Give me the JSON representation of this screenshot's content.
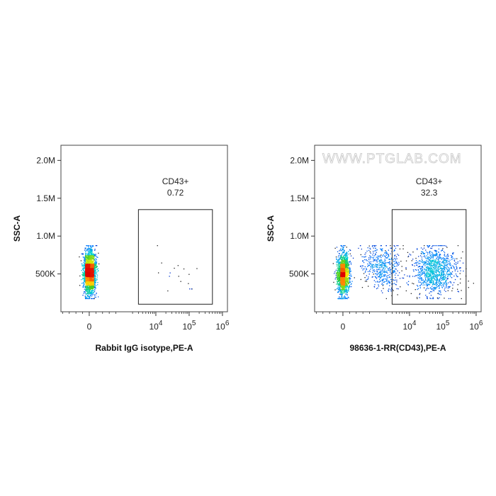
{
  "watermark": "WWW.PTGLAB.COM",
  "chart_data": [
    {
      "type": "scatter",
      "subtype": "flow-cytometry-density-dot-plot",
      "xlabel": "Rabbit IgG isotype,PE-A",
      "ylabel": "SSC-A",
      "x_scale": "biexponential",
      "x_ticks": [
        {
          "value": 0,
          "base": "0",
          "exp": ""
        },
        {
          "value": 10000,
          "base": "10",
          "exp": "4"
        },
        {
          "value": 100000,
          "base": "10",
          "exp": "5"
        },
        {
          "value": 1000000,
          "base": "10",
          "exp": "6"
        }
      ],
      "y_ticks": [
        {
          "value": 500000,
          "label": "500K"
        },
        {
          "value": 1000000,
          "label": "1.0M"
        },
        {
          "value": 1500000,
          "label": "1.5M"
        },
        {
          "value": 2000000,
          "label": "2.0M"
        }
      ],
      "ylim": [
        0,
        2200000
      ],
      "gate": {
        "name": "CD43+",
        "percent": "0.72",
        "x_range": [
          3000,
          500000
        ],
        "y_range": [
          100000,
          1350000
        ]
      },
      "populations": [
        {
          "x_center": 0,
          "y_center": 530000,
          "share_percent": 99.3
        },
        {
          "x_center": 30000,
          "y_center": 450000,
          "share_percent": 0.7
        }
      ],
      "grid": false,
      "legend": "none"
    },
    {
      "type": "scatter",
      "subtype": "flow-cytometry-density-dot-plot",
      "xlabel": "98636-1-RR(CD43),PE-A",
      "ylabel": "SSC-A",
      "x_scale": "biexponential",
      "x_ticks": [
        {
          "value": 0,
          "base": "0",
          "exp": ""
        },
        {
          "value": 10000,
          "base": "10",
          "exp": "4"
        },
        {
          "value": 100000,
          "base": "10",
          "exp": "5"
        },
        {
          "value": 1000000,
          "base": "10",
          "exp": "6"
        }
      ],
      "y_ticks": [
        {
          "value": 500000,
          "label": "500K"
        },
        {
          "value": 1000000,
          "label": "1.0M"
        },
        {
          "value": 1500000,
          "label": "1.5M"
        },
        {
          "value": 2000000,
          "label": "2.0M"
        }
      ],
      "ylim": [
        0,
        2200000
      ],
      "gate": {
        "name": "CD43+",
        "percent": "32.3",
        "x_range": [
          3000,
          500000
        ],
        "y_range": [
          100000,
          1350000
        ]
      },
      "populations": [
        {
          "x_center": 0,
          "y_center": 500000,
          "share_percent": 52
        },
        {
          "x_center": 60000,
          "y_center": 550000,
          "share_percent": 32
        },
        {
          "x_center": 1500,
          "y_center": 600000,
          "share_percent": 16
        }
      ],
      "grid": false,
      "legend": "none"
    }
  ]
}
